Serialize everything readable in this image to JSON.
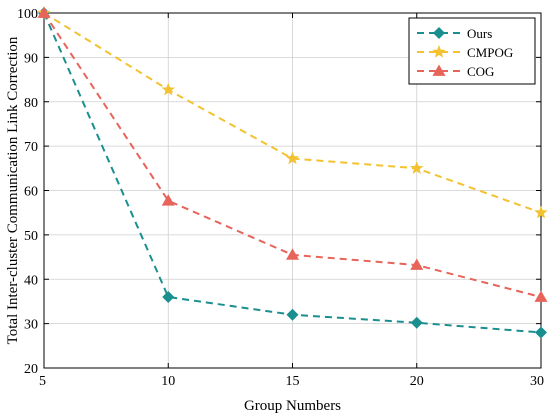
{
  "chart_data": {
    "type": "line",
    "categories": [
      "5",
      "10",
      "15",
      "20",
      "30"
    ],
    "xlabel": "Group Numbers",
    "ylabel": "Total Inter-cluster Communication Link Correction",
    "ylim": [
      20,
      100
    ],
    "yticks": [
      20,
      30,
      40,
      50,
      60,
      70,
      80,
      90,
      100
    ],
    "grid": true,
    "legend_position": "top-right",
    "series": [
      {
        "name": "Ours",
        "values": [
          100,
          36,
          32,
          30.2,
          28
        ],
        "color": "#1a8f8f",
        "marker": "diamond"
      },
      {
        "name": "CMPOG",
        "values": [
          100,
          82.7,
          67.2,
          65,
          55
        ],
        "color": "#f2c230",
        "marker": "star"
      },
      {
        "name": "COG",
        "values": [
          100,
          57.7,
          45.5,
          43.2,
          36
        ],
        "color": "#e8645a",
        "marker": "triangle"
      }
    ]
  }
}
